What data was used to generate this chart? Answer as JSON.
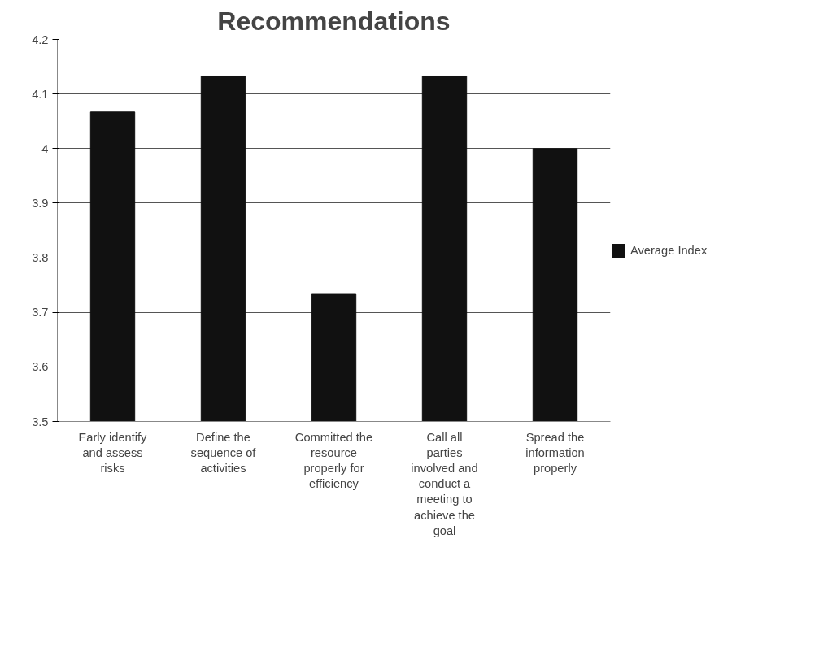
{
  "chart_data": {
    "type": "bar",
    "title": "Recommendations",
    "categories": [
      "Early identify and assess risks",
      "Define the sequence of activities",
      "Committed the resource properly for efficiency",
      "Call all parties involved and conduct a meeting to achieve the goal",
      "Spread the information properly"
    ],
    "series": [
      {
        "name": "Average Index",
        "color": "#111111",
        "values": [
          4.067,
          4.133,
          3.733,
          4.133,
          4.0
        ]
      }
    ],
    "ylim": [
      3.5,
      4.2
    ],
    "yticks": [
      3.5,
      3.6,
      3.7,
      3.8,
      3.9,
      4,
      4.1,
      4.2
    ],
    "grid": "y",
    "legend": "right"
  }
}
